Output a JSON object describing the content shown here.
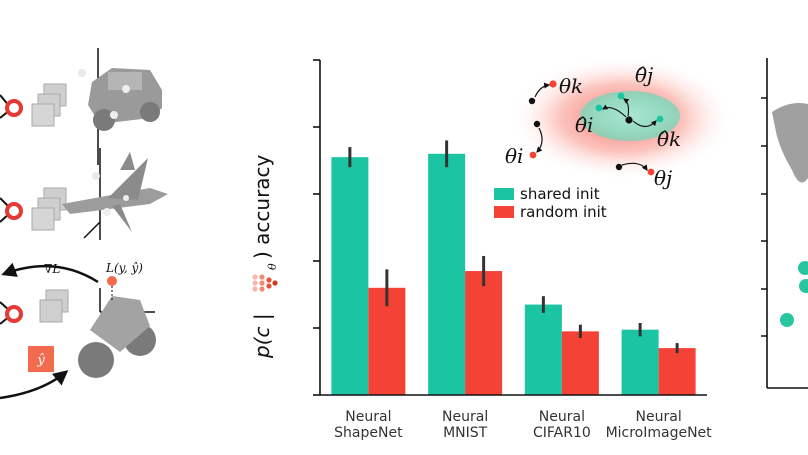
{
  "chart_data": {
    "type": "bar",
    "title": "",
    "xlabel": "",
    "ylabel": {
      "prefix": "p(c |",
      "suffix": ") accuracy",
      "subscript": "θ"
    },
    "categories": [
      [
        "Neural",
        "ShapeNet"
      ],
      [
        "Neural",
        "MNIST"
      ],
      [
        "Neural",
        "CIFAR10"
      ],
      [
        "Neural",
        "MicroImageNet"
      ]
    ],
    "ylim": [
      0,
      1
    ],
    "yticks": [
      0,
      0.2,
      0.4,
      0.6,
      0.8,
      1.0
    ],
    "grid": false,
    "legend_position": "upper-right",
    "series": [
      {
        "name": "shared init",
        "color": "#1bc5a3",
        "values": [
          0.71,
          0.72,
          0.27,
          0.195
        ],
        "errors": [
          0.03,
          0.04,
          0.025,
          0.02
        ]
      },
      {
        "name": "random init",
        "color": "#f44336",
        "values": [
          0.32,
          0.37,
          0.19,
          0.14
        ],
        "errors": [
          0.055,
          0.045,
          0.02,
          0.015
        ]
      }
    ],
    "inset_labels": {
      "theta_k": "θk",
      "theta_i": "θi",
      "theta_j": "θj",
      "theta_hat_i": "θ̂i",
      "theta_hat_j": "θ̂j",
      "theta_hat_k": "θ̂k"
    }
  },
  "left_panel": {
    "grad_label": "∇L",
    "loss_label": "L(y, ŷ)",
    "pred_label": "ŷ"
  },
  "colors": {
    "shared": "#1bc5a3",
    "random": "#f44336",
    "node_ring": "#e53935",
    "pred_box": "#f26b4f"
  }
}
